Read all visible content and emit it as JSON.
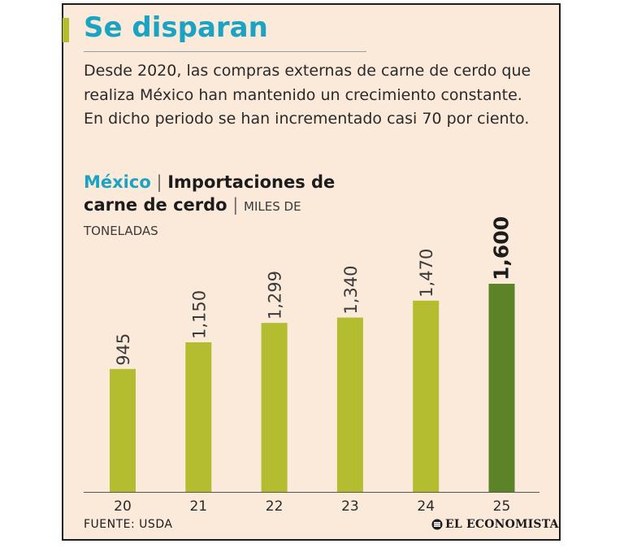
{
  "header": {
    "title": "Se disparan",
    "description": "Desde 2020, las compras externas de carne de cerdo que realiza México han mantenido un crecimiento constante. En dicho periodo se han incrementado casi 70 por ciento."
  },
  "chart_heading": {
    "country": "México",
    "separator": "|",
    "series": "Importaciones de carne de cerdo",
    "unit": "MILES DE TONELADAS"
  },
  "chart_data": {
    "type": "bar",
    "title": "México | Importaciones de carne de cerdo | MILES DE TONELADAS",
    "categories": [
      "20",
      "21",
      "22",
      "23",
      "24",
      "25"
    ],
    "values": [
      945,
      1150,
      1299,
      1340,
      1470,
      1600
    ],
    "value_labels": [
      "945",
      "1,150",
      "1,299",
      "1,340",
      "1,470",
      "1,600"
    ],
    "highlight_index": 5,
    "ylim": [
      0,
      1600
    ],
    "grid": false,
    "colors": {
      "bar": "#b3bd2f",
      "highlight": "#5c8328",
      "axis": "#555555"
    }
  },
  "footer": {
    "source": "FUENTE: USDA",
    "brand": "EL ECONOMISTA",
    "brand_icon": "el-economista-logo-mark"
  },
  "theme": {
    "background": "#fbe9da",
    "accent": "#1ba3c4",
    "title_marker": "#b3bd2f"
  }
}
